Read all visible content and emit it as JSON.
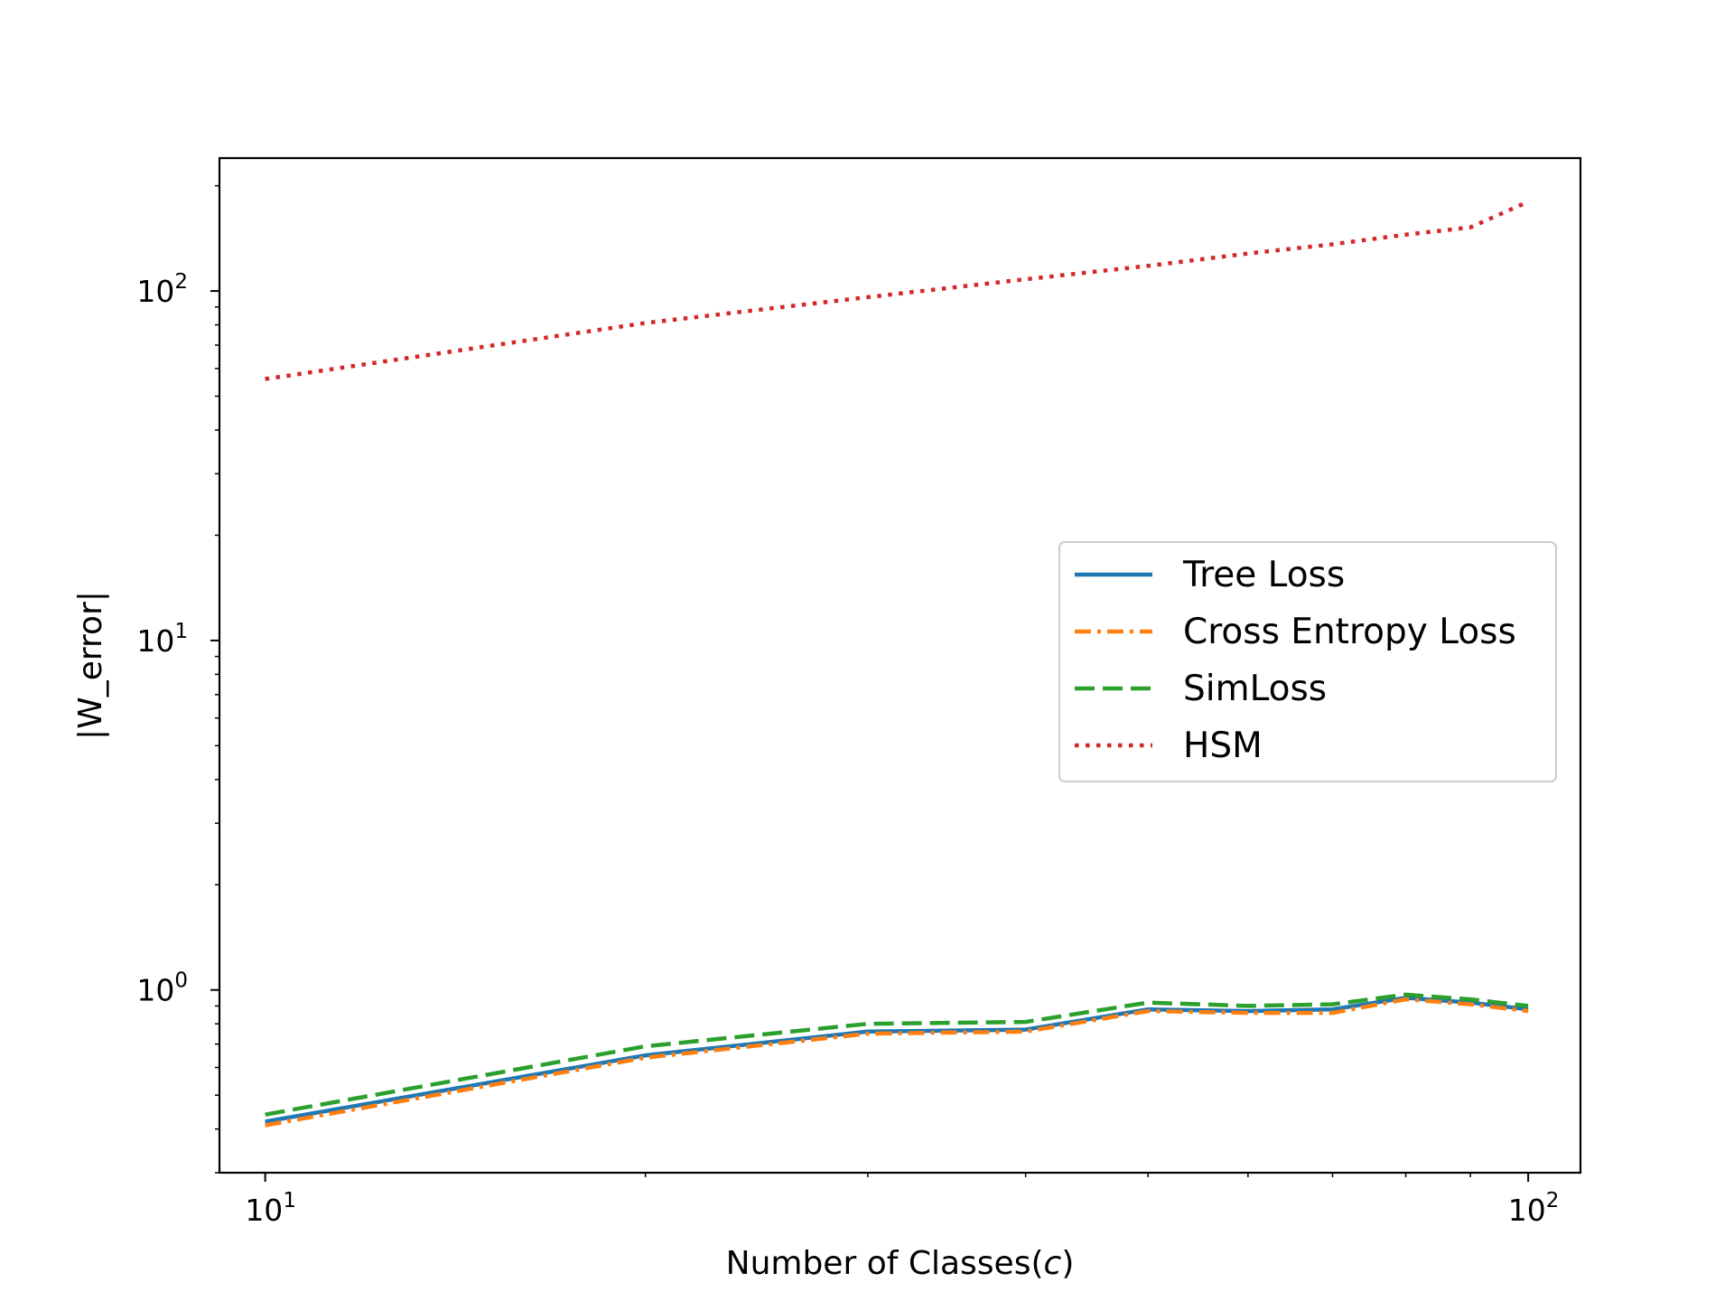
{
  "chart_data": {
    "type": "line",
    "title": "",
    "xlabel": "Number of Classes(",
    "xlabel_italic": "c",
    "xlabel_suffix": ")",
    "ylabel": "|W_error|",
    "xscale": "log",
    "yscale": "log",
    "xlim": [
      9.2,
      110
    ],
    "ylim": [
      0.3,
      240
    ],
    "grid": false,
    "legend_position": "center-right",
    "x_ticks": [
      {
        "value": 10,
        "base": "10",
        "exp": "1"
      },
      {
        "value": 100,
        "base": "10",
        "exp": "2"
      }
    ],
    "y_ticks": [
      {
        "value": 1,
        "base": "10",
        "exp": "0"
      },
      {
        "value": 10,
        "base": "10",
        "exp": "1"
      },
      {
        "value": 100,
        "base": "10",
        "exp": "2"
      }
    ],
    "x": [
      10,
      20,
      30,
      40,
      50,
      60,
      70,
      80,
      90,
      100
    ],
    "series": [
      {
        "name": "Tree Loss",
        "color": "#1f77b4",
        "dash": "solid",
        "values": [
          0.42,
          0.65,
          0.76,
          0.77,
          0.88,
          0.87,
          0.88,
          0.95,
          0.92,
          0.88
        ]
      },
      {
        "name": "Cross Entropy Loss",
        "color": "#ff7f0e",
        "dash": "dashdot",
        "values": [
          0.41,
          0.64,
          0.75,
          0.76,
          0.87,
          0.86,
          0.86,
          0.94,
          0.91,
          0.87
        ]
      },
      {
        "name": "SimLoss",
        "color": "#2ca02c",
        "dash": "dashed",
        "values": [
          0.44,
          0.69,
          0.8,
          0.81,
          0.92,
          0.9,
          0.91,
          0.97,
          0.94,
          0.9
        ]
      },
      {
        "name": "HSM",
        "color": "#d62728",
        "dash": "dotted",
        "values": [
          56,
          81,
          96,
          108,
          118,
          128,
          136,
          145,
          152,
          180
        ]
      }
    ]
  }
}
